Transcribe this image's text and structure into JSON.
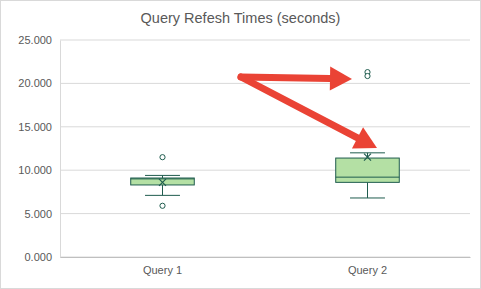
{
  "chart_data": {
    "type": "box",
    "title": "Query Refesh Times (seconds)",
    "categories": [
      "Query 1",
      "Query 2"
    ],
    "min": [
      7.1,
      6.8
    ],
    "q1": [
      8.3,
      8.6
    ],
    "median": [
      9.0,
      9.2
    ],
    "q3": [
      9.1,
      11.4
    ],
    "max": [
      9.4,
      12.0
    ],
    "mean": [
      8.6,
      11.5
    ],
    "outliers": [
      [
        11.5,
        5.9
      ],
      [
        21.3,
        20.85
      ]
    ],
    "color": "#b4e0a4",
    "ylim": [
      0,
      25
    ],
    "yticks": [
      {
        "value": 0,
        "label": "0.000"
      },
      {
        "value": 5,
        "label": "5.000"
      },
      {
        "value": 10,
        "label": "10.000"
      },
      {
        "value": 15,
        "label": "15.000"
      },
      {
        "value": 20,
        "label": "20.000"
      },
      {
        "value": 25,
        "label": "25.000"
      }
    ],
    "grid": true
  }
}
